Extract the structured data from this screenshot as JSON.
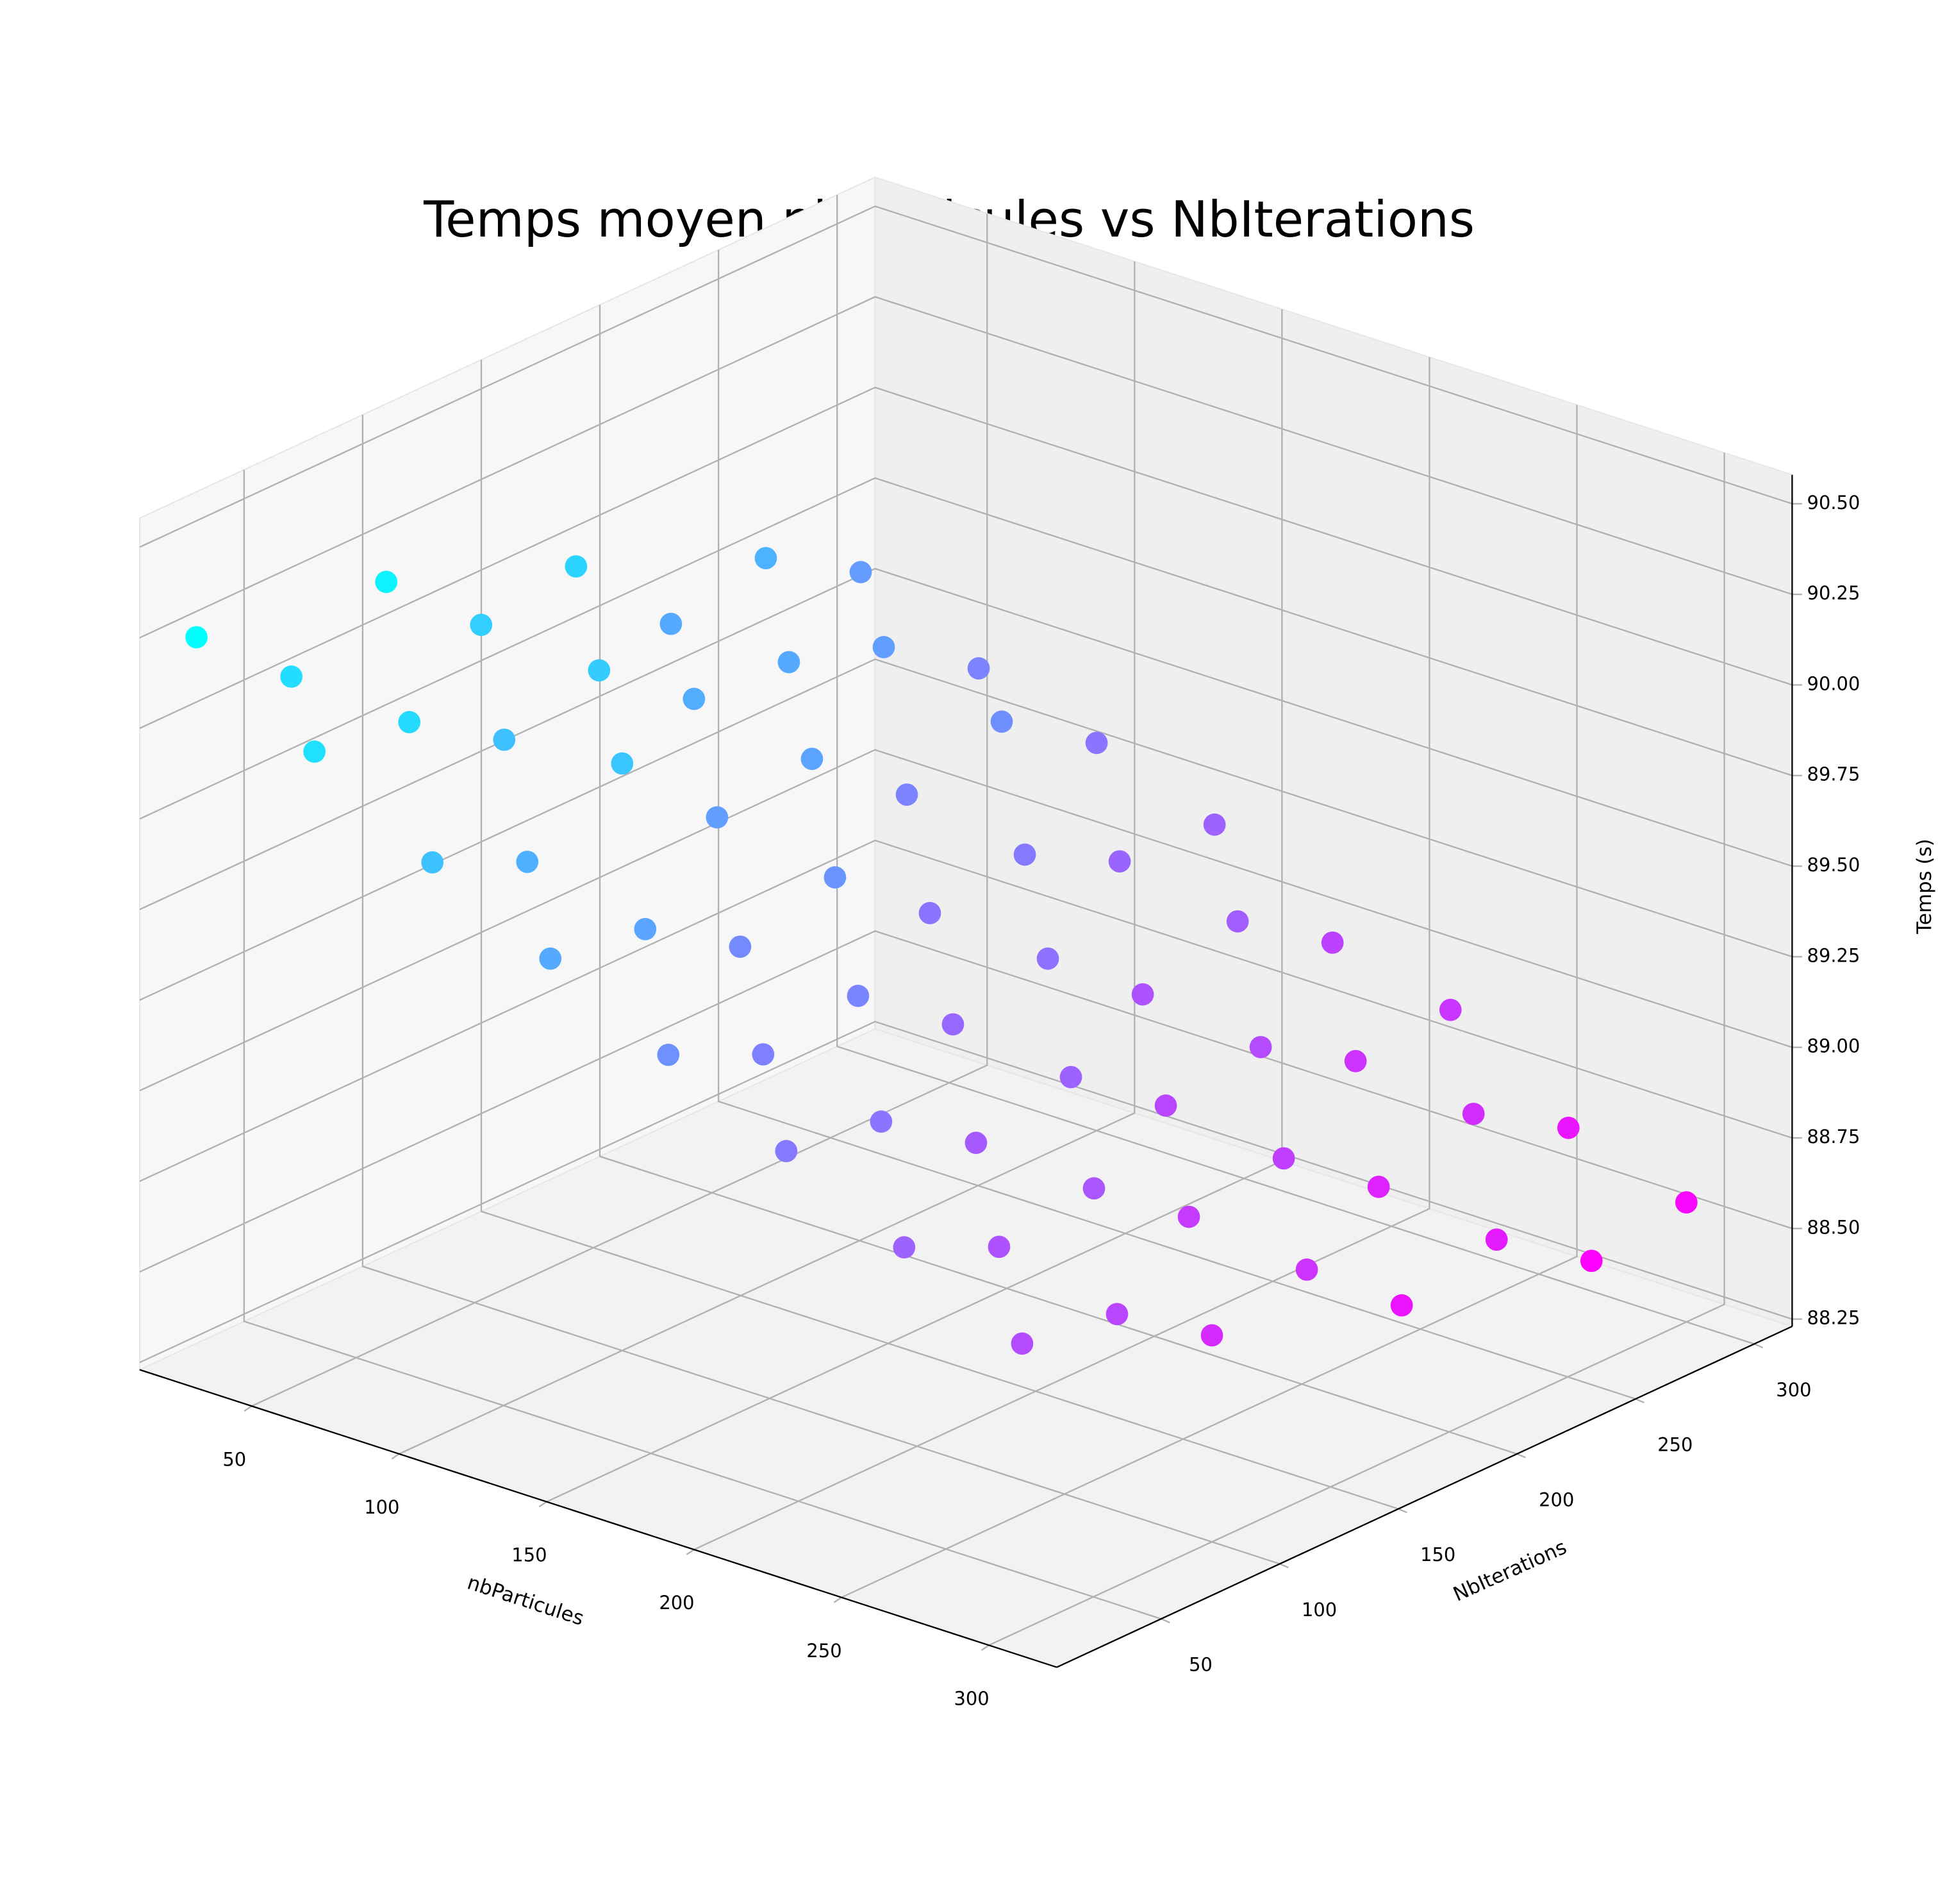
{
  "chart_data": {
    "type": "scatter3d",
    "title": "Temps moyen nbParticules vs NbIterations",
    "x_label": "nbParticules",
    "y_label": "NbIterations",
    "z_label": "Temps (s)",
    "xlim": [
      12,
      323
    ],
    "ylim": [
      6,
      316
    ],
    "zlim": [
      88.23,
      90.58
    ],
    "xticks": [
      50,
      100,
      150,
      200,
      250,
      300
    ],
    "yticks": [
      50,
      100,
      150,
      200,
      250,
      300
    ],
    "zticks": [
      88.25,
      {
        "value": 88.5,
        "label": "88.50"
      },
      88.75,
      {
        "value": 89,
        "label": "89.00"
      },
      89.25,
      {
        "value": 89.5,
        "label": "89.50"
      },
      89.75,
      {
        "value": 90,
        "label": "90.00"
      },
      90.25,
      {
        "value": 90.5,
        "label": "90.50"
      }
    ],
    "grid": true,
    "colormap": "cool",
    "color_low": "#ff00ff",
    "color_high": "#00ffff",
    "x": [
      20,
      20,
      20,
      20,
      20,
      20,
      20,
      20,
      60,
      60,
      60,
      60,
      60,
      60,
      60,
      60,
      100,
      100,
      100,
      100,
      100,
      100,
      100,
      100,
      140,
      140,
      140,
      140,
      140,
      140,
      140,
      140,
      180,
      180,
      180,
      180,
      180,
      180,
      180,
      180,
      220,
      220,
      220,
      220,
      220,
      220,
      220,
      220,
      260,
      260,
      260,
      260,
      260,
      260,
      260,
      260,
      300,
      300,
      300,
      300,
      300,
      300,
      300,
      300
    ],
    "y": [
      20,
      60,
      100,
      140,
      180,
      220,
      260,
      300,
      20,
      60,
      100,
      140,
      180,
      220,
      260,
      300,
      20,
      60,
      100,
      140,
      180,
      220,
      260,
      300,
      20,
      60,
      100,
      140,
      180,
      220,
      260,
      300,
      20,
      60,
      100,
      140,
      180,
      220,
      260,
      300,
      20,
      60,
      100,
      140,
      180,
      220,
      260,
      300,
      20,
      60,
      100,
      140,
      180,
      220,
      260,
      300,
      20,
      60,
      100,
      140,
      180,
      220,
      260,
      300
    ],
    "z": [
      90.23,
      90.0,
      90.14,
      89.9,
      89.94,
      89.66,
      89.72,
      89.56,
      90.02,
      89.98,
      89.81,
      89.88,
      89.68,
      89.66,
      89.58,
      89.4,
      89.82,
      89.7,
      89.85,
      89.58,
      89.62,
      89.4,
      89.48,
      89.3,
      89.66,
      89.62,
      89.45,
      89.52,
      89.3,
      89.34,
      89.2,
      89.18,
      89.5,
      89.38,
      89.42,
      89.22,
      89.28,
      89.06,
      89.14,
      88.96,
      89.34,
      89.3,
      89.12,
      89.18,
      88.98,
      89.02,
      88.86,
      88.88,
      89.18,
      89.06,
      89.1,
      88.9,
      88.94,
      88.74,
      88.82,
      88.66,
      89.02,
      88.98,
      88.8,
      88.86,
      88.64,
      88.7,
      88.52,
      88.56
    ]
  }
}
